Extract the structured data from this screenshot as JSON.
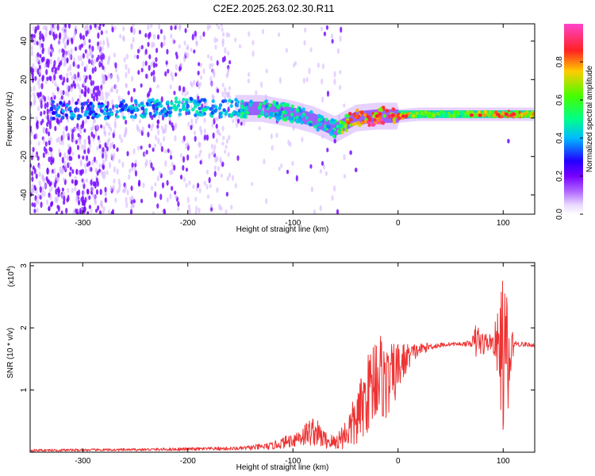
{
  "title": "C2E2.2025.263.02.30.R11",
  "colors": {
    "snr_line": "#ee3333",
    "frame": "#000000"
  },
  "chart_data": [
    {
      "type": "heatmap",
      "xlabel": "Height of straight line (km)",
      "ylabel": "Frequency (Hz)",
      "xlim": [
        -350,
        130
      ],
      "ylim": [
        -50,
        49
      ],
      "xticks": [
        -300,
        -200,
        -100,
        0,
        100
      ],
      "xtick_labels": [
        "-300",
        "-200",
        "-100",
        "0",
        "100"
      ],
      "yticks": [
        -40,
        -20,
        0,
        20,
        40
      ],
      "ytick_labels": [
        "-40",
        "-20",
        "0",
        "20",
        "40"
      ],
      "colorbar": {
        "label": "Normalized spectral amplitude",
        "range": [
          0,
          1
        ],
        "ticks": [
          0,
          0.2,
          0.4,
          0.6,
          0.8
        ],
        "tick_labels": [
          "0.0",
          "0.2",
          "0.4",
          "0.6",
          "0.8"
        ]
      },
      "ridge": {
        "x": [
          -320,
          -280,
          -240,
          -200,
          -160,
          -130,
          -100,
          -80,
          -60,
          -50,
          -40,
          -20,
          0,
          20,
          60,
          100,
          130
        ],
        "y": [
          4,
          4,
          5,
          6,
          5,
          5,
          2,
          -1,
          -6,
          -3,
          0,
          1,
          1,
          2,
          2,
          2,
          2
        ],
        "amplitude": [
          0.35,
          0.4,
          0.4,
          0.45,
          0.45,
          0.5,
          0.5,
          0.45,
          0.5,
          0.7,
          0.85,
          0.9,
          0.9,
          0.6,
          0.6,
          0.8,
          0.7
        ]
      }
    },
    {
      "type": "line",
      "xlabel": "Height of straight line (km)",
      "ylabel": "SNR (10 * v/v)",
      "scale_label": "(x10",
      "scale_exponent": "4",
      "scale_suffix": ")",
      "xlim": [
        -350,
        130
      ],
      "ylim": [
        0,
        3.05
      ],
      "xticks": [
        -300,
        -200,
        -100,
        0,
        100
      ],
      "xtick_labels": [
        "-300",
        "-200",
        "-100",
        "0",
        "100"
      ],
      "yticks": [
        1,
        2,
        3
      ],
      "ytick_labels": [
        "1",
        "2",
        "3"
      ],
      "series": [
        {
          "name": "SNR",
          "x": [
            -350,
            -250,
            -150,
            -120,
            -100,
            -80,
            -70,
            -60,
            -50,
            -40,
            -30,
            -20,
            -10,
            0,
            10,
            20,
            30,
            40,
            50,
            60,
            70,
            75,
            80,
            90,
            95,
            100,
            105,
            110,
            130
          ],
          "y": [
            0.03,
            0.04,
            0.06,
            0.1,
            0.2,
            0.35,
            0.2,
            0.15,
            0.3,
            0.5,
            0.9,
            1.3,
            1.1,
            1.35,
            1.55,
            1.65,
            1.7,
            1.72,
            1.74,
            1.74,
            1.75,
            1.8,
            1.75,
            1.78,
            1.7,
            1.6,
            1.3,
            1.75,
            1.72
          ],
          "noise": [
            0.02,
            0.02,
            0.03,
            0.06,
            0.12,
            0.25,
            0.15,
            0.12,
            0.25,
            0.45,
            0.6,
            0.8,
            0.6,
            0.45,
            0.2,
            0.1,
            0.06,
            0.04,
            0.03,
            0.03,
            0.05,
            0.35,
            0.2,
            0.12,
            0.6,
            1.3,
            1.2,
            0.05,
            0.03
          ]
        }
      ]
    }
  ]
}
